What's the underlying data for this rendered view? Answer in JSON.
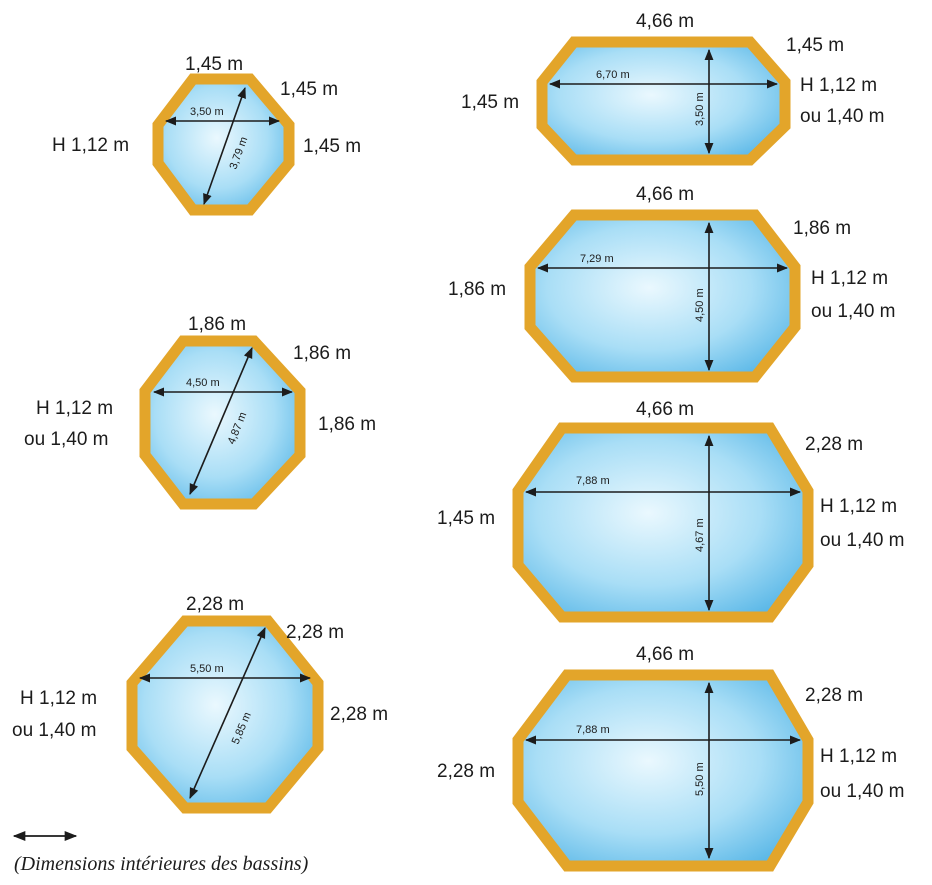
{
  "caption": "(Dimensions intérieures des bassins)",
  "colors": {
    "frame": "#e3a52a",
    "frame_dark": "#c98a16",
    "water_light": "#e4f5fd",
    "water_dark": "#55b7e8",
    "ink": "#1c1c1c"
  },
  "pools": [
    {
      "shape": "octagon",
      "side_top": "1,45 m",
      "side_diag": "1,45 m",
      "side_right": "1,45 m",
      "height_line1": "H 1,12 m",
      "height_line2": "",
      "width_label": "3,50 m",
      "diag_label": "3,79 m"
    },
    {
      "shape": "octagon",
      "side_top": "1,86 m",
      "side_diag": "1,86 m",
      "side_right": "1,86 m",
      "height_line1": "H 1,12 m",
      "height_line2": "ou 1,40 m",
      "width_label": "4,50 m",
      "diag_label": "4,87 m"
    },
    {
      "shape": "octagon",
      "side_top": "2,28 m",
      "side_diag": "2,28 m",
      "side_right": "2,28 m",
      "height_line1": "H 1,12 m",
      "height_line2": "ou 1,40 m",
      "width_label": "5,50 m",
      "diag_label": "5,85 m"
    },
    {
      "shape": "oblong",
      "side_top": "4,66 m",
      "side_diag": "1,45 m",
      "side_left": "1,45 m",
      "height_line1": "H 1,12 m",
      "height_line2": "ou 1,40 m",
      "length_label": "6,70 m",
      "width_label": "3,50 m"
    },
    {
      "shape": "oblong",
      "side_top": "4,66 m",
      "side_diag": "1,86 m",
      "side_left": "1,86 m",
      "height_line1": "H 1,12 m",
      "height_line2": "ou 1,40 m",
      "length_label": "7,29 m",
      "width_label": "4,50 m"
    },
    {
      "shape": "oblong",
      "side_top": "4,66 m",
      "side_diag": "2,28 m",
      "side_left": "1,45 m",
      "height_line1": "H 1,12 m",
      "height_line2": "ou 1,40 m",
      "length_label": "7,88 m",
      "width_label": "4,67 m"
    },
    {
      "shape": "oblong",
      "side_top": "4,66 m",
      "side_diag": "2,28 m",
      "side_left": "2,28 m",
      "height_line1": "H 1,12 m",
      "height_line2": "ou 1,40 m",
      "length_label": "7,88 m",
      "width_label": "5,50 m"
    }
  ]
}
